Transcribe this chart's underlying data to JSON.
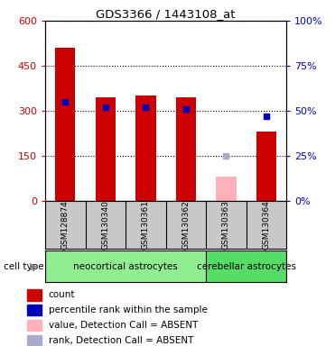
{
  "title": "GDS3366 / 1443108_at",
  "samples": [
    "GSM128874",
    "GSM130340",
    "GSM130361",
    "GSM130362",
    "GSM130363",
    "GSM130364"
  ],
  "red_values": [
    510,
    345,
    350,
    345,
    0,
    230
  ],
  "blue_pct": [
    55,
    52,
    52,
    51,
    0,
    47
  ],
  "pink_values": [
    0,
    0,
    0,
    0,
    80,
    0
  ],
  "lavender_pct": [
    0,
    0,
    0,
    0,
    25,
    0
  ],
  "absent_flags": [
    false,
    false,
    false,
    false,
    true,
    false
  ],
  "ylim_left": [
    0,
    600
  ],
  "ylim_right": [
    0,
    100
  ],
  "yticks_left": [
    0,
    150,
    300,
    450,
    600
  ],
  "yticks_right": [
    0,
    25,
    50,
    75,
    100
  ],
  "ytick_labels_left": [
    "0",
    "150",
    "300",
    "450",
    "600"
  ],
  "ytick_labels_right": [
    "0%",
    "25%",
    "50%",
    "75%",
    "100%"
  ],
  "cell_types": [
    {
      "label": "neocortical astrocytes",
      "color": "#90ee90",
      "start": 0,
      "end": 4
    },
    {
      "label": "cerebellar astrocytes",
      "color": "#55dd66",
      "start": 4,
      "end": 6
    }
  ],
  "bar_width": 0.5,
  "red_color": "#cc0000",
  "blue_color": "#0000bb",
  "pink_color": "#ffb0b8",
  "lavender_color": "#aaaacc",
  "bg_gray": "#c8c8c8",
  "plot_bg": "#ffffff",
  "legend_items": [
    {
      "color": "#cc0000",
      "marker": "s",
      "label": "count"
    },
    {
      "color": "#0000bb",
      "marker": "s",
      "label": "percentile rank within the sample"
    },
    {
      "color": "#ffb0b8",
      "marker": "s",
      "label": "value, Detection Call = ABSENT"
    },
    {
      "color": "#aaaacc",
      "marker": "s",
      "label": "rank, Detection Call = ABSENT"
    }
  ]
}
